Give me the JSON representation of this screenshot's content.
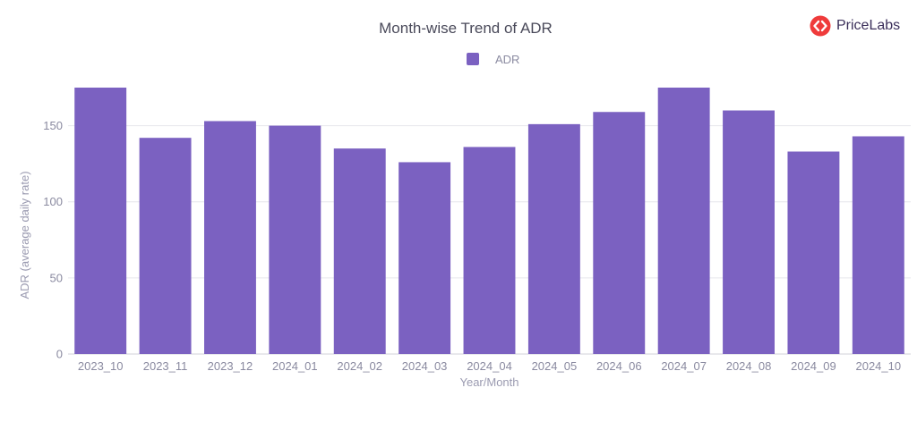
{
  "brand": {
    "name": "PriceLabs",
    "accent_color": "#ef3b3b",
    "text_color": "#3b2f5a"
  },
  "chart_data": {
    "type": "bar",
    "title": "Month-wise Trend of ADR",
    "xlabel": "Year/Month",
    "ylabel": "ADR (average daily rate)",
    "categories": [
      "2023_10",
      "2023_11",
      "2023_12",
      "2024_01",
      "2024_02",
      "2024_03",
      "2024_04",
      "2024_05",
      "2024_06",
      "2024_07",
      "2024_08",
      "2024_09",
      "2024_10"
    ],
    "series": [
      {
        "name": "ADR",
        "color": "#7b61c1",
        "values": [
          175,
          142,
          153,
          150,
          135,
          126,
          136,
          151,
          159,
          175,
          160,
          133,
          143
        ]
      }
    ],
    "ylim": [
      0,
      175
    ],
    "yticks": [
      0,
      50,
      100,
      150
    ],
    "grid": true,
    "legend_position": "top-center"
  }
}
